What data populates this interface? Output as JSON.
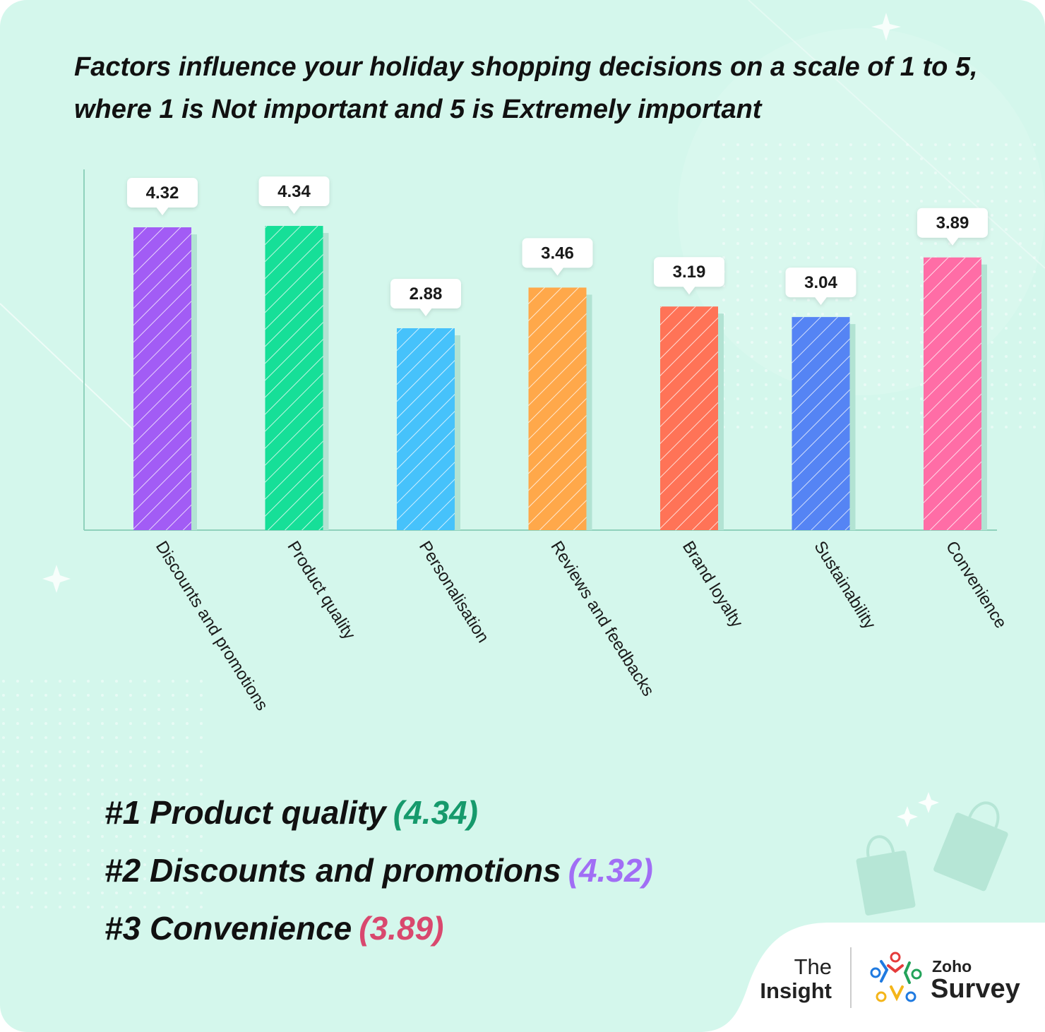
{
  "colors": {
    "background": "#d4f7ec",
    "axis": "#8fd1bc",
    "shadow": "#b2e3d3",
    "footer_panel": "#ffffff"
  },
  "chart_data": {
    "type": "bar",
    "title": [
      "Factors influence your holiday shopping decisions on a scale of 1 to 5,",
      "where 1 is Not important and 5 is Extremely important"
    ],
    "categories": [
      "Discounts and promotions",
      "Product quality",
      "Personalisation",
      "Reviews and feedbacks",
      "Brand loyalty",
      "Sustainability",
      "Convenience"
    ],
    "values": [
      4.32,
      4.34,
      2.88,
      3.46,
      3.19,
      3.04,
      3.89
    ],
    "value_labels": [
      "4.32",
      "4.34",
      "2.88",
      "3.46",
      "3.19",
      "3.04",
      "3.89"
    ],
    "bar_colors": [
      "#a25cf5",
      "#16df98",
      "#46c2fb",
      "#ffa84a",
      "#ff7357",
      "#5584f4",
      "#ff6da6"
    ],
    "ylim": [
      0,
      5
    ],
    "grid": false,
    "xlabel": "",
    "ylabel": ""
  },
  "rankings": [
    {
      "rank": "#1",
      "label": "Product quality",
      "value": "(4.34)",
      "color": "#169a6c"
    },
    {
      "rank": "#2",
      "label": "Discounts and promotions",
      "value": "(4.32)",
      "color": "#a16ef5"
    },
    {
      "rank": "#3",
      "label": "Convenience",
      "value": "(3.89)",
      "color": "#d9486e"
    }
  ],
  "brand": {
    "the": "The",
    "insight": "Insight",
    "zoho": "Zoho",
    "survey": "Survey"
  }
}
